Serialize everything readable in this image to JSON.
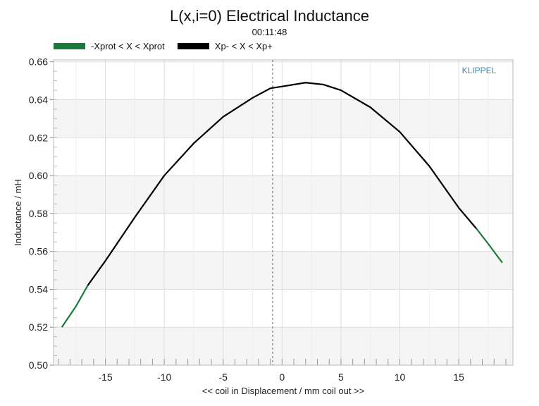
{
  "chart_data": {
    "type": "line",
    "title": "L(x,i=0) Electrical Inductance",
    "subtitle": "00:11:48",
    "xlabel": "<< coil in Displacement / mm coil out >>",
    "ylabel": "Inductance / mH",
    "watermark": "KLIPPEL",
    "xlim": [
      -19.4,
      19.6
    ],
    "ylim": [
      0.5,
      0.661
    ],
    "xticks": [
      -15,
      -10,
      -5,
      0,
      5,
      10,
      15
    ],
    "yticks": [
      0.5,
      0.52,
      0.54,
      0.56,
      0.58,
      0.6,
      0.62,
      0.64,
      0.66
    ],
    "ytick_labels": [
      "0.50",
      "0.52",
      "0.54",
      "0.56",
      "0.58",
      "0.60",
      "0.62",
      "0.64",
      "0.66"
    ],
    "vline_x": -0.8,
    "grid": true,
    "legend_position": "top-left",
    "series": [
      {
        "name": "-Xprot < X < Xprot",
        "color": "#1a7a3c",
        "x": [
          -18.7,
          -17.5,
          -16.5
        ],
        "y": [
          0.52,
          0.531,
          0.542
        ]
      },
      {
        "name": "-Xprot < X < Xprot",
        "color": "#1a7a3c",
        "x": [
          16.5,
          17.5,
          18.7
        ],
        "y": [
          0.572,
          0.564,
          0.554
        ]
      },
      {
        "name": "Xp- < X < Xp+",
        "color": "#000000",
        "x": [
          -16.5,
          -15,
          -12.5,
          -10,
          -7.5,
          -5,
          -2.5,
          -1,
          0,
          2,
          3.5,
          5,
          7.5,
          10,
          12.5,
          15,
          16.5
        ],
        "y": [
          0.542,
          0.555,
          0.578,
          0.6,
          0.617,
          0.631,
          0.641,
          0.646,
          0.647,
          0.649,
          0.648,
          0.645,
          0.636,
          0.623,
          0.605,
          0.583,
          0.572
        ]
      }
    ],
    "legend": [
      {
        "label": "-Xprot < X < Xprot",
        "color": "#1a7a3c"
      },
      {
        "label": "Xp- < X < Xp+",
        "color": "#000000"
      }
    ]
  }
}
